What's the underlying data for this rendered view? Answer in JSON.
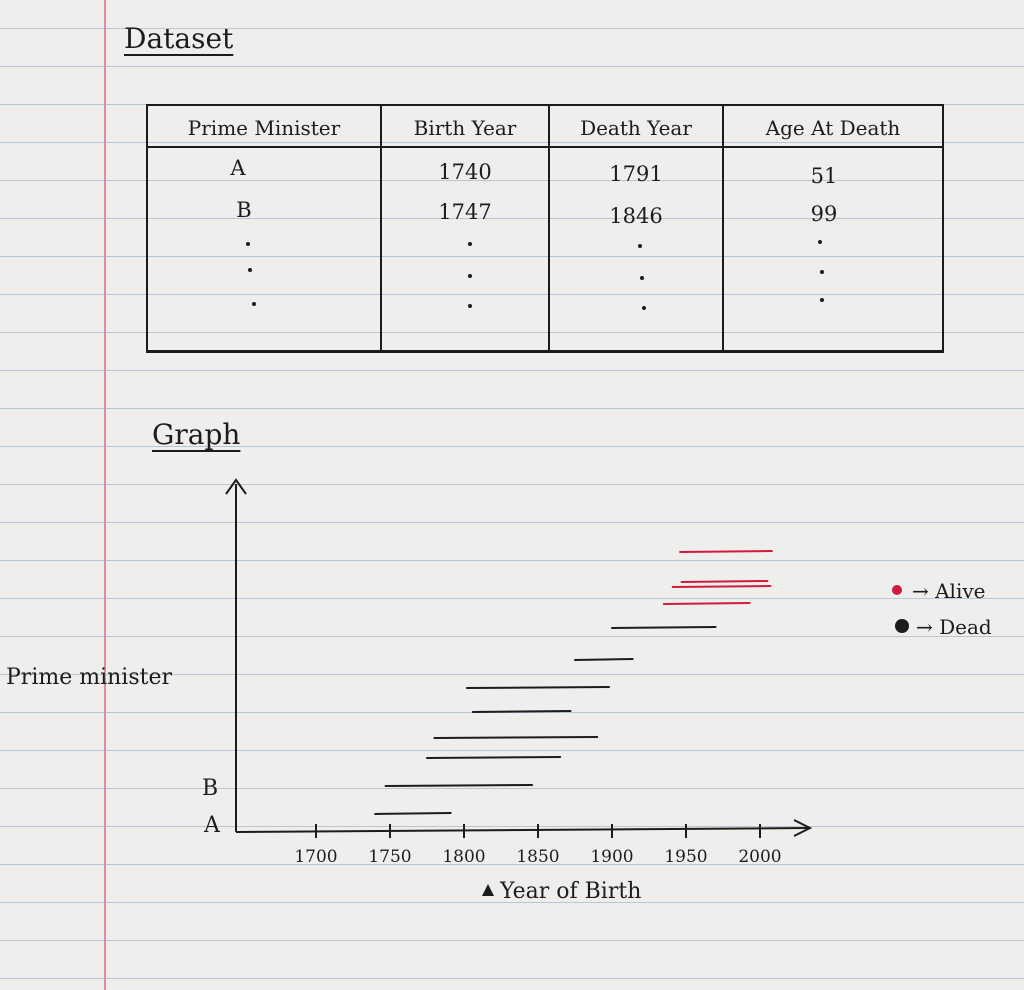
{
  "headings": {
    "dataset": "Dataset",
    "graph": "Graph"
  },
  "table": {
    "columns": [
      "Prime Minister",
      "Birth Year",
      "Death Year",
      "Age At Death"
    ],
    "rows": [
      [
        "A",
        "1740",
        "1791",
        "51"
      ],
      [
        "B",
        "1747",
        "1846",
        "99"
      ]
    ]
  },
  "chart_data": {
    "type": "line",
    "title": "",
    "xlabel": "Year of Birth",
    "ylabel": "Prime minister",
    "x_ticks": [
      "1700",
      "1750",
      "1800",
      "1850",
      "1900",
      "1950",
      "2000"
    ],
    "xlim": [
      1650,
      2030
    ],
    "y_labels": [
      "A",
      "B"
    ],
    "legend": [
      {
        "label": "Alive",
        "color": "#d11a3d"
      },
      {
        "label": "Dead",
        "color": "#1c1c1c"
      }
    ],
    "legend_position": "right",
    "series": [
      {
        "start": 1740,
        "end": 1791,
        "status": "dead"
      },
      {
        "start": 1747,
        "end": 1846,
        "status": "dead"
      },
      {
        "start": 1775,
        "end": 1865,
        "status": "dead"
      },
      {
        "start": 1780,
        "end": 1890,
        "status": "dead"
      },
      {
        "start": 1806,
        "end": 1872,
        "status": "dead"
      },
      {
        "start": 1802,
        "end": 1898,
        "status": "dead"
      },
      {
        "start": 1875,
        "end": 1914,
        "status": "dead"
      },
      {
        "start": 1900,
        "end": 1970,
        "status": "dead"
      },
      {
        "start": 1935,
        "end": 1993,
        "status": "alive"
      },
      {
        "start": 1947,
        "end": 2005,
        "status": "alive"
      },
      {
        "start": 1941,
        "end": 2007,
        "status": "alive"
      },
      {
        "start": 1946,
        "end": 2008,
        "status": "alive"
      }
    ]
  }
}
